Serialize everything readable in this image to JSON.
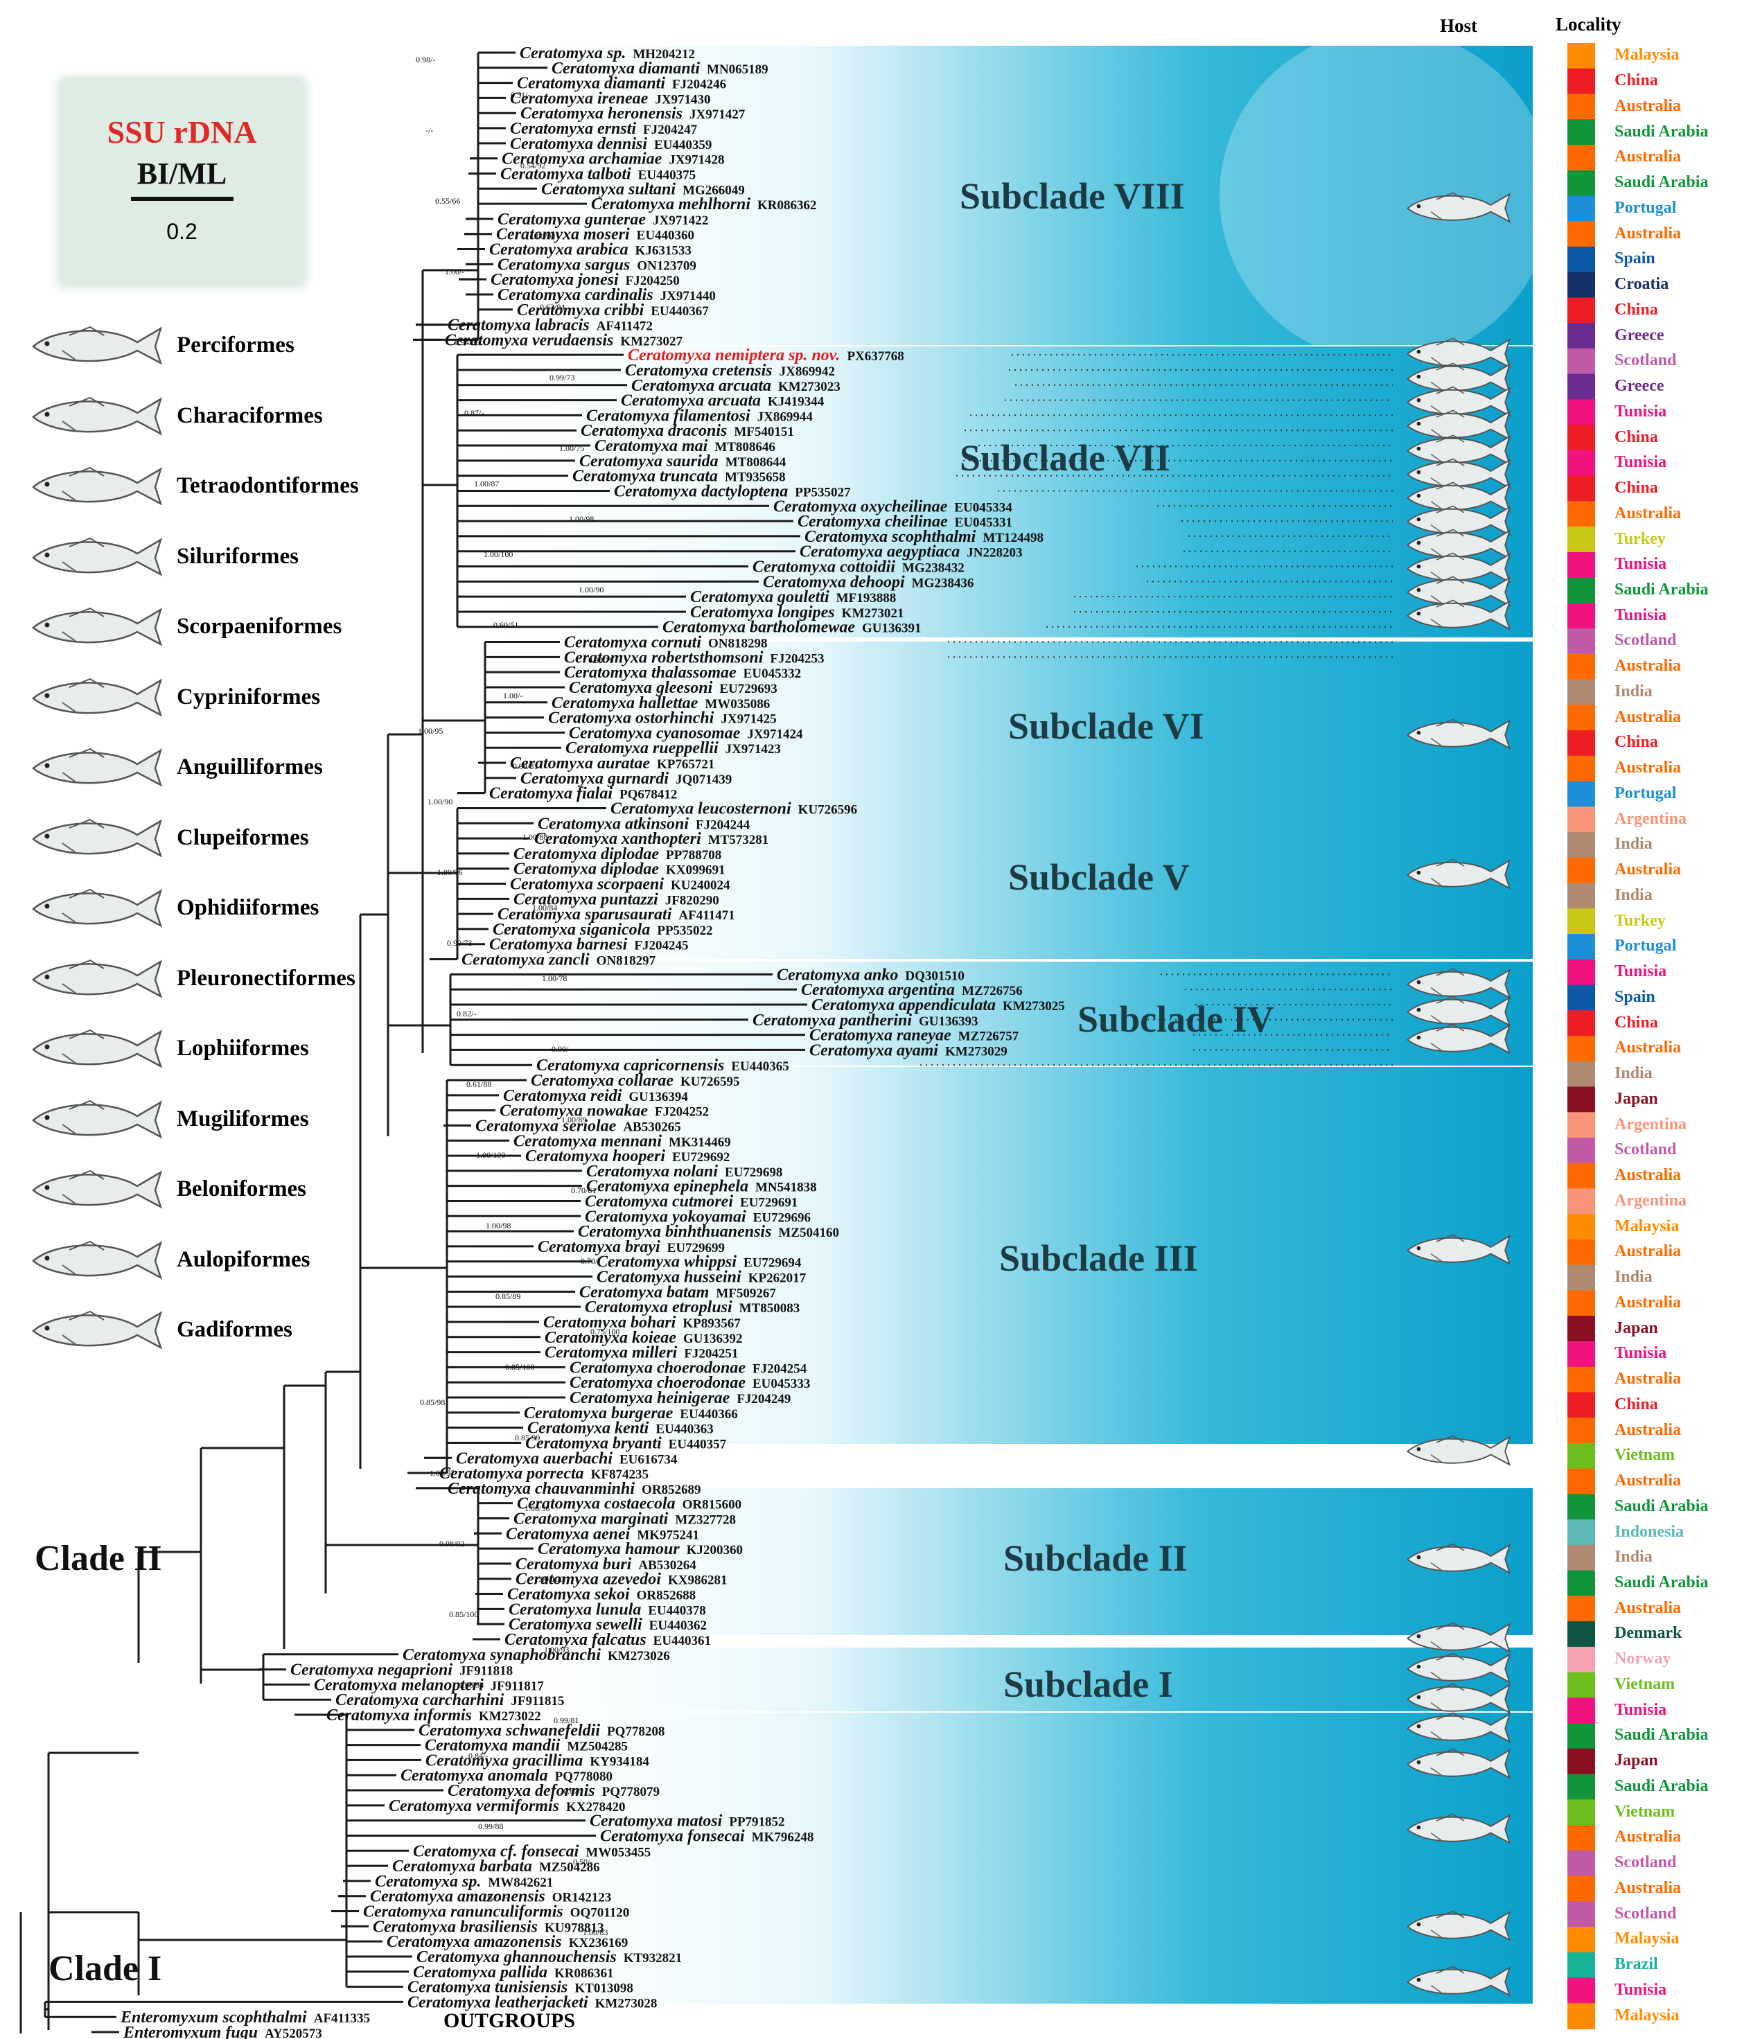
{
  "legend": {
    "title": "SSU rDNA",
    "subtitle": "BI/ML",
    "scale": "0.2"
  },
  "headers": {
    "host": "Host",
    "locality": "Locality"
  },
  "subclades": [
    "Subclade VIII",
    "Subclade VII",
    "Subclade VI",
    "Subclade V",
    "Subclade IV",
    "Subclade III",
    "Subclade II",
    "Subclade I"
  ],
  "clades": [
    "Clade II",
    "Clade I"
  ],
  "outgroups_label": "OUTGROUPS",
  "orders": [
    "Perciformes",
    "Characiformes",
    "Tetraodontiformes",
    "Siluriformes",
    "Scorpaeniformes",
    "Cypriniformes",
    "Anguilliformes",
    "Clupeiformes",
    "Ophidiiformes",
    "Pleuronectiformes",
    "Lophiiformes",
    "Mugiliformes",
    "Beloniformes",
    "Aulopiformes",
    "Gadiformes"
  ],
  "colors": {
    "band_light": "#ffffff",
    "band_dark": "#0aa3cc",
    "novel_taxon": "#e11d1d"
  },
  "support_values": [
    "0.98/-",
    "0.51/-",
    "-/-",
    "0.54/92",
    "0.55/66",
    "1.00/93",
    "1.00/-",
    "0.63/94",
    "0.94/85",
    "0.99/73",
    "0.87/-",
    "1.00/75",
    "1.00/87",
    "1.00/98",
    "1.00/100",
    "1.00/90",
    "0.60/51",
    "0.98/79",
    "1.00/-",
    "1.00/95",
    "0.98/81",
    "1.00/90",
    "1.00/88",
    "1.00/96",
    "1.00/84",
    "0.99/73",
    "1.00/78",
    "0.82/-",
    "0.90/-",
    "0.61/88",
    "1.00/89",
    "1.00/100",
    "0.70/81",
    "1.00/98",
    "0.70/-",
    "0.85/89",
    "0.75/100",
    "0.85/100",
    "0.85/98",
    "0.85/99",
    "1.00/97",
    "1.00/56",
    "0.98/92",
    "1.00/100",
    "0.85/100",
    "1.00/93",
    "1.00/94",
    "0.99/81",
    "0.84/-",
    "0.67/-",
    "0.99/88",
    "0.50/-",
    "0.71/-",
    "1.00/83"
  ],
  "taxa": [
    {
      "name": "Ceratomyxa sp.",
      "acc": "MH204212"
    },
    {
      "name": "Ceratomyxa diamanti",
      "acc": "MN065189"
    },
    {
      "name": "Ceratomyxa diamanti",
      "acc": "FJ204246"
    },
    {
      "name": "Ceratomyxa ireneae",
      "acc": "JX971430"
    },
    {
      "name": "Ceratomyxa heronensis",
      "acc": "JX971427"
    },
    {
      "name": "Ceratomyxa ernsti",
      "acc": "FJ204247"
    },
    {
      "name": "Ceratomyxa dennisi",
      "acc": "EU440359"
    },
    {
      "name": "Ceratomyxa archamiae",
      "acc": "JX971428"
    },
    {
      "name": "Ceratomyxa talboti",
      "acc": "EU440375"
    },
    {
      "name": "Ceratomyxa sultani",
      "acc": "MG266049"
    },
    {
      "name": "Ceratomyxa mehlhorni",
      "acc": "KR086362"
    },
    {
      "name": "Ceratomyxa gunterae",
      "acc": "JX971422"
    },
    {
      "name": "Ceratomyxa moseri",
      "acc": "EU440360"
    },
    {
      "name": "Ceratomyxa arabica",
      "acc": "KJ631533"
    },
    {
      "name": "Ceratomyxa sargus",
      "acc": "ON123709"
    },
    {
      "name": "Ceratomyxa jonesi",
      "acc": "FJ204250"
    },
    {
      "name": "Ceratomyxa cardinalis",
      "acc": "JX971440"
    },
    {
      "name": "Ceratomyxa cribbi",
      "acc": "EU440367"
    },
    {
      "name": "Ceratomyxa labracis",
      "acc": "AF411472"
    },
    {
      "name": "Ceratomyxa verudaensis",
      "acc": "KM273027"
    },
    {
      "name": "Ceratomyxa nemiptera sp. nov.",
      "acc": "PX637768",
      "novel": true
    },
    {
      "name": "Ceratomyxa cretensis",
      "acc": "JX869942"
    },
    {
      "name": "Ceratomyxa arcuata",
      "acc": "KM273023"
    },
    {
      "name": "Ceratomyxa arcuata",
      "acc": "KJ419344"
    },
    {
      "name": "Ceratomyxa filamentosi",
      "acc": "JX869944"
    },
    {
      "name": "Ceratomyxa draconis",
      "acc": "MF540151"
    },
    {
      "name": "Ceratomyxa mai",
      "acc": "MT808646"
    },
    {
      "name": "Ceratomyxa saurida",
      "acc": "MT808644"
    },
    {
      "name": "Ceratomyxa truncata",
      "acc": "MT935658"
    },
    {
      "name": "Ceratomyxa dactyloptena",
      "acc": "PP535027"
    },
    {
      "name": "Ceratomyxa oxycheilinae",
      "acc": "EU045334"
    },
    {
      "name": "Ceratomyxa cheilinae",
      "acc": "EU045331"
    },
    {
      "name": "Ceratomyxa scophthalmi",
      "acc": "MT124498"
    },
    {
      "name": "Ceratomyxa aegyptiaca",
      "acc": "JN228203"
    },
    {
      "name": "Ceratomyxa cottoidii",
      "acc": "MG238432"
    },
    {
      "name": "Ceratomyxa dehoopi",
      "acc": "MG238436"
    },
    {
      "name": "Ceratomyxa gouletti",
      "acc": "MF193888"
    },
    {
      "name": "Ceratomyxa longipes",
      "acc": "KM273021"
    },
    {
      "name": "Ceratomyxa bartholomewae",
      "acc": "GU136391"
    },
    {
      "name": "Ceratomyxa cornuti",
      "acc": "ON818298"
    },
    {
      "name": "Ceratomyxa robertsthomsoni",
      "acc": "FJ204253"
    },
    {
      "name": "Ceratomyxa thalassomae",
      "acc": "EU045332"
    },
    {
      "name": "Ceratomyxa gleesoni",
      "acc": "EU729693"
    },
    {
      "name": "Ceratomyxa hallettae",
      "acc": "MW035086"
    },
    {
      "name": "Ceratomyxa ostorhinchi",
      "acc": "JX971425"
    },
    {
      "name": "Ceratomyxa cyanosomae",
      "acc": "JX971424"
    },
    {
      "name": "Ceratomyxa rueppellii",
      "acc": "JX971423"
    },
    {
      "name": "Ceratomyxa auratae",
      "acc": "KP765721"
    },
    {
      "name": "Ceratomyxa gurnardi",
      "acc": "JQ071439"
    },
    {
      "name": "Ceratomyxa fialai",
      "acc": "PQ678412"
    },
    {
      "name": "Ceratomyxa leucosternoni",
      "acc": "KU726596"
    },
    {
      "name": "Ceratomyxa atkinsoni",
      "acc": "FJ204244"
    },
    {
      "name": "Ceratomyxa xanthopteri",
      "acc": "MT573281"
    },
    {
      "name": "Ceratomyxa diplodae",
      "acc": "PP788708"
    },
    {
      "name": "Ceratomyxa diplodae",
      "acc": "KX099691"
    },
    {
      "name": "Ceratomyxa scorpaeni",
      "acc": "KU240024"
    },
    {
      "name": "Ceratomyxa puntazzi",
      "acc": "JF820290"
    },
    {
      "name": "Ceratomyxa sparusaurati",
      "acc": "AF411471"
    },
    {
      "name": "Ceratomyxa siganicola",
      "acc": "PP535022"
    },
    {
      "name": "Ceratomyxa barnesi",
      "acc": "FJ204245"
    },
    {
      "name": "Ceratomyxa zancli",
      "acc": "ON818297"
    },
    {
      "name": "Ceratomyxa anko",
      "acc": "DQ301510"
    },
    {
      "name": "Ceratomyxa argentina",
      "acc": "MZ726756"
    },
    {
      "name": "Ceratomyxa appendiculata",
      "acc": "KM273025"
    },
    {
      "name": "Ceratomyxa pantherini",
      "acc": "GU136393"
    },
    {
      "name": "Ceratomyxa raneyae",
      "acc": "MZ726757"
    },
    {
      "name": "Ceratomyxa ayami",
      "acc": "KM273029"
    },
    {
      "name": "Ceratomyxa capricornensis",
      "acc": "EU440365"
    },
    {
      "name": "Ceratomyxa collarae",
      "acc": "KU726595"
    },
    {
      "name": "Ceratomyxa reidi",
      "acc": "GU136394"
    },
    {
      "name": "Ceratomyxa nowakae",
      "acc": "FJ204252"
    },
    {
      "name": "Ceratomyxa seriolae",
      "acc": "AB530265"
    },
    {
      "name": "Ceratomyxa mennani",
      "acc": "MK314469"
    },
    {
      "name": "Ceratomyxa hooperi",
      "acc": "EU729692"
    },
    {
      "name": "Ceratomyxa nolani",
      "acc": "EU729698"
    },
    {
      "name": "Ceratomyxa epinephela",
      "acc": "MN541838"
    },
    {
      "name": "Ceratomyxa cutmorei",
      "acc": "EU729691"
    },
    {
      "name": "Ceratomyxa yokoyamai",
      "acc": "EU729696"
    },
    {
      "name": "Ceratomyxa binhthuanensis",
      "acc": "MZ504160"
    },
    {
      "name": "Ceratomyxa brayi",
      "acc": "EU729699"
    },
    {
      "name": "Ceratomyxa whippsi",
      "acc": "EU729694"
    },
    {
      "name": "Ceratomyxa husseini",
      "acc": "KP262017"
    },
    {
      "name": "Ceratomyxa batam",
      "acc": "MF509267"
    },
    {
      "name": "Ceratomyxa etroplusi",
      "acc": "MT850083"
    },
    {
      "name": "Ceratomyxa bohari",
      "acc": "KP893567"
    },
    {
      "name": "Ceratomyxa koieae",
      "acc": "GU136392"
    },
    {
      "name": "Ceratomyxa milleri",
      "acc": "FJ204251"
    },
    {
      "name": "Ceratomyxa choerodonae",
      "acc": "FJ204254"
    },
    {
      "name": "Ceratomyxa choerodonae",
      "acc": "EU045333"
    },
    {
      "name": "Ceratomyxa heinigerae",
      "acc": "FJ204249"
    },
    {
      "name": "Ceratomyxa burgerae",
      "acc": "EU440366"
    },
    {
      "name": "Ceratomyxa kenti",
      "acc": "EU440363"
    },
    {
      "name": "Ceratomyxa bryanti",
      "acc": "EU440357"
    },
    {
      "name": "Ceratomyxa auerbachi",
      "acc": "EU616734"
    },
    {
      "name": "Ceratomyxa porrecta",
      "acc": "KF874235"
    },
    {
      "name": "Ceratomyxa chauvanminhi",
      "acc": "OR852689"
    },
    {
      "name": "Ceratomyxa costaecola",
      "acc": "OR815600"
    },
    {
      "name": "Ceratomyxa marginati",
      "acc": "MZ327728"
    },
    {
      "name": "Ceratomyxa aenei",
      "acc": "MK975241"
    },
    {
      "name": "Ceratomyxa hamour",
      "acc": "KJ200360"
    },
    {
      "name": "Ceratomyxa buri",
      "acc": "AB530264"
    },
    {
      "name": "Ceratomyxa azevedoi",
      "acc": "KX986281"
    },
    {
      "name": "Ceratomyxa sekoi",
      "acc": "OR852688"
    },
    {
      "name": "Ceratomyxa lunula",
      "acc": "EU440378"
    },
    {
      "name": "Ceratomyxa sewelli",
      "acc": "EU440362"
    },
    {
      "name": "Ceratomyxa falcatus",
      "acc": "EU440361"
    },
    {
      "name": "Ceratomyxa synaphobranchi",
      "acc": "KM273026"
    },
    {
      "name": "Ceratomyxa negaprioni",
      "acc": "JF911818"
    },
    {
      "name": "Ceratomyxa melanopteri",
      "acc": "JF911817"
    },
    {
      "name": "Ceratomyxa carcharhini",
      "acc": "JF911815"
    },
    {
      "name": "Ceratomyxa informis",
      "acc": "KM273022"
    },
    {
      "name": "Ceratomyxa schwanefeldii",
      "acc": "PQ778208"
    },
    {
      "name": "Ceratomyxa mandii",
      "acc": "MZ504285"
    },
    {
      "name": "Ceratomyxa gracillima",
      "acc": "KY934184"
    },
    {
      "name": "Ceratomyxa anomala",
      "acc": "PQ778080"
    },
    {
      "name": "Ceratomyxa deformis",
      "acc": "PQ778079"
    },
    {
      "name": "Ceratomyxa vermiformis",
      "acc": "KX278420"
    },
    {
      "name": "Ceratomyxa matosi",
      "acc": "PP791852"
    },
    {
      "name": "Ceratomyxa fonsecai",
      "acc": "MK796248"
    },
    {
      "name": "Ceratomyxa cf. fonsecai",
      "acc": "MW053455"
    },
    {
      "name": "Ceratomyxa barbata",
      "acc": "MZ504286"
    },
    {
      "name": "Ceratomyxa sp.",
      "acc": "MW842621"
    },
    {
      "name": "Ceratomyxa amazonensis",
      "acc": "OR142123"
    },
    {
      "name": "Ceratomyxa ranunculiformis",
      "acc": "OQ701120"
    },
    {
      "name": "Ceratomyxa brasiliensis",
      "acc": "KU978813"
    },
    {
      "name": "Ceratomyxa amazonensis",
      "acc": "KX236169"
    },
    {
      "name": "Ceratomyxa ghannouchensis",
      "acc": "KT932821"
    },
    {
      "name": "Ceratomyxa pallida",
      "acc": "KR086361"
    },
    {
      "name": "Ceratomyxa tunisiensis",
      "acc": "KT013098"
    },
    {
      "name": "Ceratomyxa leatherjacketi",
      "acc": "KM273028"
    },
    {
      "name": "Enteromyxum scophthalmi",
      "acc": "AF411335"
    },
    {
      "name": "Enteromyxum fugu",
      "acc": "AY520573"
    }
  ],
  "localities": [
    {
      "name": "Malaysia",
      "color": "#ff8c00"
    },
    {
      "name": "China",
      "color": "#ee1c25"
    },
    {
      "name": "Australia",
      "color": "#ff6a00"
    },
    {
      "name": "Saudi Arabia",
      "color": "#10953b"
    },
    {
      "name": "Australia",
      "color": "#ff6a00"
    },
    {
      "name": "Saudi Arabia",
      "color": "#10953b"
    },
    {
      "name": "Portugal",
      "color": "#1c8fd8"
    },
    {
      "name": "Australia",
      "color": "#ff6a00"
    },
    {
      "name": "Spain",
      "color": "#0b5aa8"
    },
    {
      "name": "Croatia",
      "color": "#16306b"
    },
    {
      "name": "China",
      "color": "#ee1c25"
    },
    {
      "name": "Greece",
      "color": "#6b2c91"
    },
    {
      "name": "Scotland",
      "color": "#c05aa6"
    },
    {
      "name": "Greece",
      "color": "#6b2c91"
    },
    {
      "name": "Tunisia",
      "color": "#f0127e"
    },
    {
      "name": "China",
      "color": "#ee1c25"
    },
    {
      "name": "Tunisia",
      "color": "#f0127e"
    },
    {
      "name": "China",
      "color": "#ee1c25"
    },
    {
      "name": "Australia",
      "color": "#ff6a00"
    },
    {
      "name": "Turkey",
      "color": "#c8c815"
    },
    {
      "name": "Tunisia",
      "color": "#f0127e"
    },
    {
      "name": "Saudi Arabia",
      "color": "#10953b"
    },
    {
      "name": "Tunisia",
      "color": "#f0127e"
    },
    {
      "name": "Scotland",
      "color": "#c05aa6"
    },
    {
      "name": "Australia",
      "color": "#ff6a00"
    },
    {
      "name": "India",
      "color": "#b08a70"
    },
    {
      "name": "Australia",
      "color": "#ff6a00"
    },
    {
      "name": "China",
      "color": "#ee1c25"
    },
    {
      "name": "Australia",
      "color": "#ff6a00"
    },
    {
      "name": "Portugal",
      "color": "#1c8fd8"
    },
    {
      "name": "Argentina",
      "color": "#f7957a"
    },
    {
      "name": "India",
      "color": "#b08a70"
    },
    {
      "name": "Australia",
      "color": "#ff6a00"
    },
    {
      "name": "India",
      "color": "#b08a70"
    },
    {
      "name": "Turkey",
      "color": "#c8c815"
    },
    {
      "name": "Portugal",
      "color": "#1c8fd8"
    },
    {
      "name": "Tunisia",
      "color": "#f0127e"
    },
    {
      "name": "Spain",
      "color": "#0b5aa8"
    },
    {
      "name": "China",
      "color": "#ee1c25"
    },
    {
      "name": "Australia",
      "color": "#ff6a00"
    },
    {
      "name": "India",
      "color": "#b08a70"
    },
    {
      "name": "Japan",
      "color": "#8b1024"
    },
    {
      "name": "Argentina",
      "color": "#f7957a"
    },
    {
      "name": "Scotland",
      "color": "#c05aa6"
    },
    {
      "name": "Australia",
      "color": "#ff6a00"
    },
    {
      "name": "Argentina",
      "color": "#f7957a"
    },
    {
      "name": "Malaysia",
      "color": "#ff8c00"
    },
    {
      "name": "Australia",
      "color": "#ff6a00"
    },
    {
      "name": "India",
      "color": "#b08a70"
    },
    {
      "name": "Australia",
      "color": "#ff6a00"
    },
    {
      "name": "Japan",
      "color": "#8b1024"
    },
    {
      "name": "Tunisia",
      "color": "#f0127e"
    },
    {
      "name": "Australia",
      "color": "#ff6a00"
    },
    {
      "name": "China",
      "color": "#ee1c25"
    },
    {
      "name": "Australia",
      "color": "#ff6a00"
    },
    {
      "name": "Vietnam",
      "color": "#6cc01e"
    },
    {
      "name": "Australia",
      "color": "#ff6a00"
    },
    {
      "name": "Saudi Arabia",
      "color": "#10953b"
    },
    {
      "name": "Indonesia",
      "color": "#5fb7b7"
    },
    {
      "name": "India",
      "color": "#b08a70"
    },
    {
      "name": "Saudi Arabia",
      "color": "#10953b"
    },
    {
      "name": "Australia",
      "color": "#ff6a00"
    },
    {
      "name": "Denmark",
      "color": "#0e5545"
    },
    {
      "name": "Norway",
      "color": "#f4a2b0"
    },
    {
      "name": "Vietnam",
      "color": "#6cc01e"
    },
    {
      "name": "Tunisia",
      "color": "#f0127e"
    },
    {
      "name": "Saudi Arabia",
      "color": "#10953b"
    },
    {
      "name": "Japan",
      "color": "#8b1024"
    },
    {
      "name": "Saudi Arabia",
      "color": "#10953b"
    },
    {
      "name": "Vietnam",
      "color": "#6cc01e"
    },
    {
      "name": "Australia",
      "color": "#ff6a00"
    },
    {
      "name": "Scotland",
      "color": "#c05aa6"
    },
    {
      "name": "Australia",
      "color": "#ff6a00"
    },
    {
      "name": "Scotland",
      "color": "#c05aa6"
    },
    {
      "name": "Malaysia",
      "color": "#ff8c00"
    },
    {
      "name": "Brazil",
      "color": "#18b49a"
    },
    {
      "name": "Tunisia",
      "color": "#f0127e"
    },
    {
      "name": "Malaysia",
      "color": "#ff8c00"
    }
  ]
}
